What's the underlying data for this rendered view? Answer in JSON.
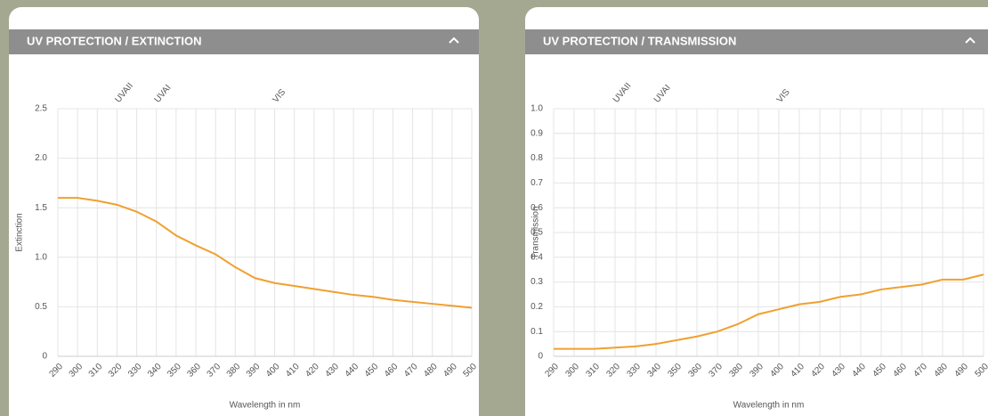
{
  "chart_data": [
    {
      "type": "line",
      "title": "UV PROTECTION / EXTINCTION",
      "xlabel": "Wavelength in nm",
      "ylabel": "Extinction",
      "x": [
        290,
        300,
        310,
        320,
        330,
        340,
        350,
        360,
        370,
        380,
        390,
        400,
        410,
        420,
        430,
        440,
        450,
        460,
        470,
        480,
        490,
        500
      ],
      "values": [
        1.6,
        1.6,
        1.57,
        1.53,
        1.46,
        1.36,
        1.22,
        1.12,
        1.03,
        0.9,
        0.79,
        0.74,
        0.71,
        0.68,
        0.65,
        0.62,
        0.6,
        0.57,
        0.55,
        0.53,
        0.51,
        0.49
      ],
      "color": "#f0a030",
      "xlim": [
        290,
        500
      ],
      "xticks": [
        290,
        300,
        310,
        320,
        330,
        340,
        350,
        360,
        370,
        380,
        390,
        400,
        410,
        420,
        430,
        440,
        450,
        460,
        470,
        480,
        490,
        500
      ],
      "ylim": [
        0,
        2.5
      ],
      "yticks": [
        0,
        0.5,
        {
          "value": 1,
          "label": "1.0"
        },
        1.5,
        {
          "value": 2,
          "label": "2.0"
        },
        2.5
      ],
      "grid": true,
      "annotations": [
        {
          "x": 320,
          "text": "UVAII"
        },
        {
          "x": 340,
          "text": "UVAI"
        },
        {
          "x": 400,
          "text": "VIS"
        }
      ]
    },
    {
      "type": "line",
      "title": "UV PROTECTION / TRANSMISSION",
      "xlabel": "Wavelength in nm",
      "ylabel": "Transmission",
      "x": [
        290,
        300,
        310,
        320,
        330,
        340,
        350,
        360,
        370,
        380,
        390,
        400,
        410,
        420,
        430,
        440,
        450,
        460,
        470,
        480,
        490,
        500
      ],
      "values": [
        0.03,
        0.03,
        0.03,
        0.035,
        0.04,
        0.05,
        0.065,
        0.08,
        0.1,
        0.13,
        0.17,
        0.19,
        0.21,
        0.22,
        0.24,
        0.25,
        0.27,
        0.28,
        0.29,
        0.31,
        0.31,
        0.33
      ],
      "color": "#f0a030",
      "xlim": [
        290,
        500
      ],
      "xticks": [
        290,
        300,
        310,
        320,
        330,
        340,
        350,
        360,
        370,
        380,
        390,
        400,
        410,
        420,
        430,
        440,
        450,
        460,
        470,
        480,
        490,
        500
      ],
      "ylim": [
        0,
        1
      ],
      "yticks": [
        0,
        0.1,
        0.2,
        0.3,
        0.4,
        0.5,
        0.6,
        0.7,
        0.8,
        0.9,
        {
          "value": 1,
          "label": "1.0"
        }
      ],
      "grid": true,
      "annotations": [
        {
          "x": 320,
          "text": "UVAII"
        },
        {
          "x": 340,
          "text": "UVAI"
        },
        {
          "x": 400,
          "text": "VIS"
        }
      ]
    }
  ]
}
